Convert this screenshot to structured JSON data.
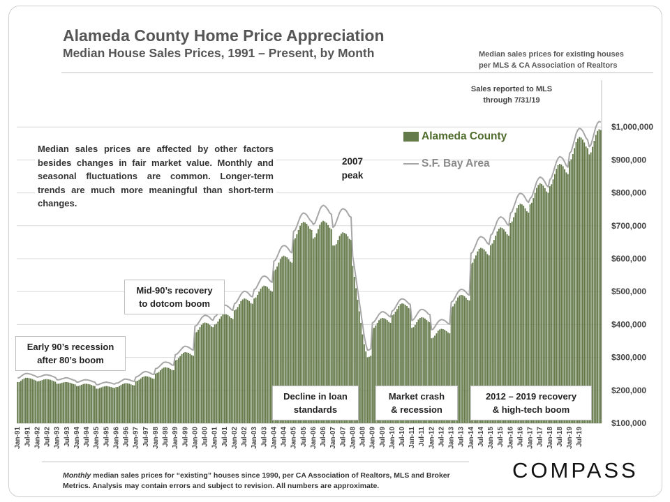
{
  "header": {
    "title": "Alameda County Home Price Appreciation",
    "subtitle": "Median House Sales Prices, 1991 – Present, by Month",
    "source_line1": "Median sales prices for existing houses",
    "source_line2": "per MLS & CA Association  of Realtors"
  },
  "notes": {
    "sales_reported_line1": "Sales reported to MLS",
    "sales_reported_line2": "through 7/31/19",
    "explanation": "Median sales prices are affected by other factors besides changes in fair market value. Monthly and seasonal fluctuations are common. Longer-term trends are much more meaningful than short-term changes.",
    "peak_2007_line1": "2007",
    "peak_2007_line2": "peak",
    "early90s_line1": "Early 90’s recession",
    "early90s_line2": "after 80’s boom",
    "mid90s_line1": "Mid-90’s recovery",
    "mid90s_line2": "to dotcom boom",
    "decline_line1": "Decline in loan",
    "decline_line2": "standards",
    "crash_line1": "Market crash",
    "crash_line2": "& recession",
    "recovery_line1": "2012 – 2019 recovery",
    "recovery_line2": "& high-tech boom"
  },
  "footer": {
    "footnote_italic": "Monthly",
    "footnote_rest": " median sales prices for “existing” houses since 1990, per CA Association of Realtors, MLS and Broker Metrics.  Analysis  may contain errors and subject to revision.  All numbers are approximate.",
    "logo": "COMPASS"
  },
  "chart_data": {
    "type": "bar",
    "x_range": [
      "Jan-91",
      "Jul-19"
    ],
    "ylim": [
      100000,
      1100000
    ],
    "y_ticks": [
      100000,
      200000,
      300000,
      400000,
      500000,
      600000,
      700000,
      800000,
      900000,
      1000000
    ],
    "y_tick_labels": [
      "$100,000",
      "$200,000",
      "$300,000",
      "$400,000",
      "$500,000",
      "$600,000",
      "$700,000",
      "$800,000",
      "$900,000",
      "$1,000,000"
    ],
    "x_tick_labels": [
      "Jan-91",
      "Jul-91",
      "Jan-92",
      "Jul-92",
      "Jan-93",
      "Jul-93",
      "Jan-94",
      "Jul-94",
      "Jan-95",
      "Jul-95",
      "Jan-96",
      "Jul-96",
      "Jan-97",
      "Jul-97",
      "Jan-98",
      "Jul-98",
      "Jan-99",
      "Jul-99",
      "Jan-00",
      "Jul-00",
      "Jan-01",
      "Jul-01",
      "Jan-02",
      "Jul-02",
      "Jan-03",
      "Jul-03",
      "Jan-04",
      "Jul-04",
      "Jan-05",
      "Jul-05",
      "Jan-06",
      "Jul-06",
      "Jan-07",
      "Jul-07",
      "Jan-08",
      "Jul-08",
      "Jan-09",
      "Jul-09",
      "Jan-10",
      "Jul-10",
      "Jan-11",
      "Jul-11",
      "Jan-12",
      "Jul-12",
      "Jan-13",
      "Jul-13",
      "Jan-14",
      "Jul-14",
      "Jan-15",
      "Jul-15",
      "Jan-16",
      "Jul-16",
      "Jan-17",
      "Jul-17",
      "Jan-18",
      "Jul-18",
      "Jan-19",
      "Jul-19"
    ],
    "legend_placement": "upper-right inside plot",
    "series": [
      {
        "name": "Alameda County",
        "kind": "bar",
        "color": "#657a4b",
        "values": [
          225000,
          225000,
          229000,
          233000,
          236000,
          238000,
          238000,
          237000,
          236000,
          234000,
          232000,
          230000,
          227000,
          228000,
          229000,
          231000,
          233000,
          234000,
          234000,
          233000,
          232000,
          230000,
          228000,
          226000,
          220000,
          220000,
          221000,
          223000,
          224000,
          225000,
          225000,
          224000,
          223000,
          221000,
          219000,
          218000,
          213000,
          213000,
          215000,
          217000,
          219000,
          220000,
          220000,
          219000,
          218000,
          216000,
          214000,
          213000,
          205000,
          205000,
          207000,
          209000,
          211000,
          212000,
          213000,
          212000,
          211000,
          210000,
          208000,
          207000,
          210000,
          210000,
          213000,
          216000,
          219000,
          221000,
          222000,
          221000,
          220000,
          218000,
          216000,
          215000,
          228000,
          229000,
          232000,
          236000,
          240000,
          242000,
          243000,
          242000,
          241000,
          239000,
          236000,
          235000,
          251000,
          253000,
          256000,
          261000,
          266000,
          269000,
          270000,
          269000,
          268000,
          265000,
          262000,
          261000,
          291000,
          293000,
          298000,
          304000,
          310000,
          314000,
          316000,
          315000,
          314000,
          311000,
          307000,
          305000,
          375000,
          377000,
          384000,
          392000,
          399000,
          404000,
          406000,
          405000,
          403000,
          399000,
          394000,
          392000,
          400000,
          402000,
          409000,
          417000,
          425000,
          430000,
          432000,
          431000,
          429000,
          425000,
          420000,
          417000,
          443000,
          446000,
          453000,
          462000,
          471000,
          476000,
          479000,
          478000,
          475000,
          471000,
          465000,
          463000,
          479000,
          482000,
          490000,
          500000,
          509000,
          515000,
          518000,
          517000,
          514000,
          509000,
          503000,
          500000,
          563000,
          567000,
          576000,
          588000,
          599000,
          606000,
          609000,
          607000,
          604000,
          598000,
          591000,
          588000,
          658000,
          662000,
          674000,
          687000,
          700000,
          708000,
          712000,
          710000,
          706000,
          699000,
          691000,
          687000,
          661000,
          665000,
          677000,
          690000,
          703000,
          711000,
          715000,
          713000,
          709000,
          702000,
          694000,
          690000,
          640000,
          640000,
          644000,
          657000,
          669000,
          676000,
          680000,
          678000,
          675000,
          668000,
          660000,
          657000,
          578000,
          545000,
          510000,
          475000,
          440000,
          405000,
          370000,
          340000,
          318000,
          300000,
          302000,
          305000,
          388000,
          390000,
          397000,
          405000,
          413000,
          418000,
          420000,
          419000,
          417000,
          413000,
          408000,
          405000,
          428000,
          431000,
          439000,
          447000,
          456000,
          462000,
          464000,
          463000,
          460000,
          456000,
          450000,
          448000,
          390000,
          392000,
          399000,
          407000,
          415000,
          420000,
          422000,
          421000,
          418000,
          414000,
          409000,
          407000,
          358000,
          360000,
          366000,
          373000,
          381000,
          385000,
          387000,
          386000,
          384000,
          380000,
          376000,
          373000,
          452000,
          455000,
          463000,
          472000,
          482000,
          488000,
          490000,
          489000,
          486000,
          481000,
          475000,
          473000,
          584000,
          588000,
          599000,
          610000,
          622000,
          630000,
          633000,
          631000,
          628000,
          622000,
          614000,
          610000,
          641000,
          646000,
          657000,
          670000,
          683000,
          691000,
          695000,
          693000,
          689000,
          682000,
          674000,
          670000,
          708000,
          713000,
          726000,
          740000,
          754000,
          763000,
          767000,
          765000,
          761000,
          753000,
          744000,
          740000,
          765000,
          770000,
          784000,
          800000,
          815000,
          824000,
          829000,
          827000,
          822000,
          814000,
          804000,
          800000,
          820000,
          826000,
          841000,
          857000,
          873000,
          884000,
          888000,
          886000,
          881000,
          872000,
          862000,
          857000,
          896000,
          902000,
          918000,
          936000,
          954000,
          965000,
          970000,
          968000,
          962000,
          953000,
          941000,
          936000,
          917000,
          923000,
          940000,
          958000,
          976000,
          988000,
          993000,
          991000
        ]
      },
      {
        "name": "S.F. Bay Area",
        "kind": "line",
        "color": "#a6a6a6",
        "values": [
          238000,
          238000,
          242000,
          246000,
          249000,
          251000,
          251000,
          250000,
          249000,
          247000,
          245000,
          243000,
          240000,
          241000,
          242000,
          244000,
          246000,
          247000,
          247000,
          246000,
          245000,
          243000,
          241000,
          239000,
          232000,
          232000,
          233000,
          235000,
          236000,
          238000,
          238000,
          237000,
          235000,
          233000,
          231000,
          230000,
          225000,
          225000,
          227000,
          229000,
          231000,
          232000,
          232000,
          231000,
          230000,
          228000,
          226000,
          225000,
          217000,
          217000,
          219000,
          221000,
          223000,
          224000,
          225000,
          224000,
          223000,
          222000,
          220000,
          219000,
          222000,
          222000,
          225000,
          228000,
          231000,
          234000,
          234000,
          233000,
          232000,
          230000,
          228000,
          227000,
          240000,
          242000,
          245000,
          249000,
          253000,
          256000,
          257000,
          256000,
          254000,
          252000,
          249000,
          248000,
          266000,
          267000,
          271000,
          276000,
          281000,
          285000,
          286000,
          285000,
          284000,
          281000,
          277000,
          276000,
          308000,
          310000,
          315000,
          321000,
          327000,
          332000,
          334000,
          333000,
          331000,
          328000,
          324000,
          322000,
          395000,
          397000,
          404000,
          412000,
          420000,
          425000,
          428000,
          427000,
          425000,
          421000,
          415000,
          413000,
          424000,
          427000,
          434000,
          443000,
          451000,
          456000,
          459000,
          458000,
          455000,
          451000,
          446000,
          443000,
          463000,
          466000,
          474000,
          483000,
          492000,
          498000,
          501000,
          500000,
          497000,
          492000,
          486000,
          484000,
          506000,
          509000,
          518000,
          528000,
          538000,
          545000,
          547000,
          546000,
          543000,
          537000,
          531000,
          528000,
          592000,
          596000,
          606000,
          618000,
          630000,
          637000,
          640000,
          639000,
          635000,
          629000,
          621000,
          618000,
          683000,
          687000,
          699000,
          713000,
          726000,
          735000,
          739000,
          737000,
          733000,
          725000,
          717000,
          713000,
          704000,
          708000,
          721000,
          735000,
          749000,
          758000,
          762000,
          760000,
          755000,
          748000,
          739000,
          735000,
          695000,
          700000,
          712000,
          726000,
          740000,
          748000,
          752000,
          750000,
          746000,
          738000,
          729000,
          726000,
          608000,
          575000,
          540000,
          505000,
          470000,
          435000,
          400000,
          365000,
          340000,
          322000,
          323000,
          326000,
          405000,
          408000,
          415000,
          423000,
          431000,
          436000,
          439000,
          438000,
          435000,
          431000,
          426000,
          423000,
          441000,
          444000,
          452000,
          461000,
          470000,
          476000,
          478000,
          477000,
          474000,
          469000,
          464000,
          461000,
          412000,
          415000,
          422000,
          430000,
          438000,
          444000,
          446000,
          445000,
          442000,
          438000,
          432000,
          430000,
          384000,
          386000,
          393000,
          401000,
          408000,
          413000,
          415000,
          414000,
          412000,
          408000,
          403000,
          401000,
          468000,
          471000,
          479000,
          489000,
          498000,
          504000,
          507000,
          506000,
          503000,
          498000,
          492000,
          489000,
          616000,
          620000,
          631000,
          643000,
          656000,
          664000,
          667000,
          665000,
          662000,
          655000,
          647000,
          643000,
          671000,
          676000,
          688000,
          701000,
          715000,
          723000,
          727000,
          725000,
          721000,
          714000,
          705000,
          701000,
          738000,
          743000,
          757000,
          771000,
          786000,
          795000,
          799000,
          797000,
          793000,
          785000,
          776000,
          771000,
          783000,
          788000,
          802000,
          818000,
          834000,
          843000,
          848000,
          846000,
          841000,
          833000,
          823000,
          818000,
          840000,
          846000,
          861000,
          878000,
          894000,
          905000,
          910000,
          908000,
          903000,
          894000,
          883000,
          878000,
          920000,
          926000,
          943000,
          961000,
          980000,
          991000,
          996000,
          994000,
          988000,
          978000,
          967000,
          961000,
          940000,
          946000,
          963000,
          982000,
          1000000,
          1012000,
          1017000,
          1015000
        ]
      }
    ]
  }
}
